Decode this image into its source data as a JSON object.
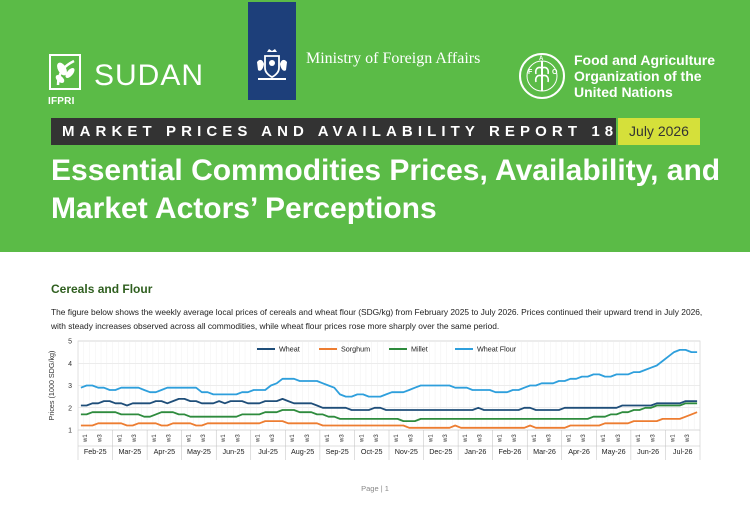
{
  "header": {
    "sudan_logo_text": "SUDAN",
    "ifpri_text": "IFPRI",
    "ministry": "Ministry of Foreign Affairs",
    "fao_line1": "Food and Agriculture",
    "fao_line2": "Organization of the",
    "fao_line3": "United Nations",
    "report_label": "MARKET PRICES AND AVAILABILITY REPORT 18",
    "report_month": "July 2026",
    "title_line1": "Essential Commodities Prices, Availability, and",
    "title_line2": "Market Actors’ Perceptions",
    "colors": {
      "banner": "#5bbb47",
      "bar": "#333333",
      "month": "#d5e03a",
      "ministry_block": "#1d3f7a"
    }
  },
  "section": {
    "heading": "Cereals and Flour",
    "paragraph": "The figure below shows the weekly average local prices of cereals and wheat flour (SDG/kg) from February 2025 to July 2026. Prices continued their upward trend in July 2026, with steady increases observed across all commodities, while wheat flour prices rose more sharply over the same period."
  },
  "chart_data": {
    "type": "line",
    "ylabel": "Prices (1000 SDG/kg)",
    "ylim": [
      1,
      5
    ],
    "yticks": [
      "1",
      "2",
      "3",
      "4",
      "5"
    ],
    "grid": true,
    "legend": "top",
    "months": [
      "Feb-25",
      "Mar-25",
      "Apr-25",
      "May-25",
      "Jun-25",
      "Jul-25",
      "Aug-25",
      "Sep-25",
      "Oct-25",
      "Nov-25",
      "Dec-25",
      "Jan-26",
      "Feb-26",
      "Mar-26",
      "Apr-26",
      "May-26",
      "Jun-26",
      "Jul-26"
    ],
    "week_labels": [
      "w1",
      "w3"
    ],
    "series": [
      {
        "name": "Wheat",
        "color": "#1f4e79",
        "values": [
          2.1,
          2.1,
          2.2,
          2.2,
          2.3,
          2.3,
          2.2,
          2.2,
          2.1,
          2.2,
          2.2,
          2.2,
          2.2,
          2.3,
          2.3,
          2.2,
          2.3,
          2.4,
          2.4,
          2.3,
          2.3,
          2.2,
          2.2,
          2.2,
          2.3,
          2.2,
          2.3,
          2.3,
          2.3,
          2.2,
          2.2,
          2.2,
          2.3,
          2.3,
          2.3,
          2.4,
          2.3,
          2.2,
          2.2,
          2.2,
          2.2,
          2.1,
          2.0,
          2.0,
          2.0,
          2.0,
          2.0,
          1.9,
          1.9,
          1.9,
          1.9,
          2.0,
          2.0,
          1.9,
          1.9,
          1.9,
          1.9,
          1.9,
          1.9,
          1.9,
          1.9,
          1.9,
          1.9,
          1.9,
          1.9,
          1.9,
          1.9,
          1.9,
          1.9,
          2.0,
          1.9,
          1.9,
          1.9,
          1.9,
          1.9,
          1.9,
          1.9,
          2.0,
          2.0,
          1.9,
          1.9,
          1.9,
          1.9,
          1.9,
          2.0,
          2.0,
          2.0,
          2.0,
          2.0,
          2.0,
          2.0,
          2.0,
          2.0,
          2.0,
          2.1,
          2.1,
          2.1,
          2.1,
          2.1,
          2.1,
          2.2,
          2.2,
          2.2,
          2.2,
          2.2,
          2.3,
          2.3,
          2.3
        ]
      },
      {
        "name": "Sorghum",
        "color": "#ed7d31",
        "values": [
          1.2,
          1.2,
          1.2,
          1.3,
          1.3,
          1.3,
          1.3,
          1.3,
          1.2,
          1.2,
          1.3,
          1.3,
          1.3,
          1.3,
          1.2,
          1.2,
          1.3,
          1.3,
          1.3,
          1.3,
          1.2,
          1.2,
          1.3,
          1.3,
          1.3,
          1.3,
          1.3,
          1.3,
          1.3,
          1.3,
          1.3,
          1.3,
          1.4,
          1.4,
          1.4,
          1.4,
          1.3,
          1.3,
          1.3,
          1.3,
          1.3,
          1.3,
          1.2,
          1.2,
          1.2,
          1.2,
          1.2,
          1.2,
          1.2,
          1.2,
          1.2,
          1.2,
          1.2,
          1.2,
          1.2,
          1.2,
          1.2,
          1.1,
          1.1,
          1.1,
          1.1,
          1.1,
          1.1,
          1.1,
          1.1,
          1.2,
          1.1,
          1.1,
          1.1,
          1.1,
          1.1,
          1.1,
          1.1,
          1.1,
          1.1,
          1.1,
          1.1,
          1.1,
          1.2,
          1.1,
          1.1,
          1.1,
          1.1,
          1.1,
          1.1,
          1.2,
          1.2,
          1.2,
          1.2,
          1.2,
          1.2,
          1.3,
          1.3,
          1.3,
          1.3,
          1.3,
          1.4,
          1.4,
          1.4,
          1.4,
          1.4,
          1.5,
          1.5,
          1.5,
          1.5,
          1.6,
          1.7,
          1.8
        ]
      },
      {
        "name": "Millet",
        "color": "#2e8b3d",
        "values": [
          1.7,
          1.7,
          1.8,
          1.8,
          1.8,
          1.8,
          1.8,
          1.7,
          1.7,
          1.7,
          1.7,
          1.6,
          1.6,
          1.7,
          1.8,
          1.8,
          1.8,
          1.7,
          1.7,
          1.6,
          1.6,
          1.6,
          1.6,
          1.6,
          1.6,
          1.6,
          1.6,
          1.6,
          1.7,
          1.7,
          1.7,
          1.7,
          1.8,
          1.8,
          1.8,
          1.9,
          1.9,
          1.9,
          1.8,
          1.8,
          1.8,
          1.7,
          1.7,
          1.6,
          1.6,
          1.5,
          1.5,
          1.5,
          1.5,
          1.5,
          1.5,
          1.5,
          1.5,
          1.5,
          1.5,
          1.5,
          1.4,
          1.4,
          1.4,
          1.5,
          1.5,
          1.5,
          1.5,
          1.5,
          1.5,
          1.5,
          1.5,
          1.5,
          1.5,
          1.5,
          1.5,
          1.5,
          1.5,
          1.5,
          1.5,
          1.5,
          1.5,
          1.5,
          1.5,
          1.5,
          1.5,
          1.5,
          1.5,
          1.5,
          1.5,
          1.5,
          1.5,
          1.5,
          1.5,
          1.6,
          1.6,
          1.6,
          1.7,
          1.7,
          1.8,
          1.8,
          1.9,
          1.9,
          2.0,
          2.0,
          2.1,
          2.1,
          2.1,
          2.1,
          2.1,
          2.2,
          2.2,
          2.2
        ]
      },
      {
        "name": "Wheat Flour",
        "color": "#2e9fdc",
        "values": [
          2.9,
          3.0,
          3.0,
          2.9,
          2.9,
          2.8,
          2.8,
          2.9,
          2.9,
          2.9,
          2.9,
          2.8,
          2.7,
          2.7,
          2.8,
          2.9,
          2.9,
          2.9,
          2.9,
          2.9,
          2.9,
          2.7,
          2.7,
          2.6,
          2.6,
          2.6,
          2.6,
          2.6,
          2.7,
          2.7,
          2.8,
          2.8,
          2.8,
          3.0,
          3.1,
          3.3,
          3.3,
          3.3,
          3.2,
          3.2,
          3.2,
          3.2,
          3.1,
          3.0,
          2.9,
          2.6,
          2.5,
          2.5,
          2.6,
          2.6,
          2.5,
          2.5,
          2.5,
          2.6,
          2.7,
          2.7,
          2.7,
          2.8,
          2.9,
          3.0,
          3.0,
          3.0,
          3.0,
          3.0,
          3.0,
          2.9,
          2.9,
          2.9,
          2.8,
          2.8,
          2.8,
          2.8,
          2.7,
          2.7,
          2.7,
          2.8,
          2.8,
          2.9,
          3.0,
          3.0,
          3.1,
          3.1,
          3.1,
          3.2,
          3.2,
          3.3,
          3.3,
          3.4,
          3.4,
          3.5,
          3.5,
          3.4,
          3.4,
          3.5,
          3.5,
          3.5,
          3.6,
          3.6,
          3.7,
          3.8,
          3.9,
          4.1,
          4.3,
          4.5,
          4.6,
          4.6,
          4.5,
          4.5
        ]
      }
    ]
  },
  "footer": {
    "page": "Page | 1"
  }
}
